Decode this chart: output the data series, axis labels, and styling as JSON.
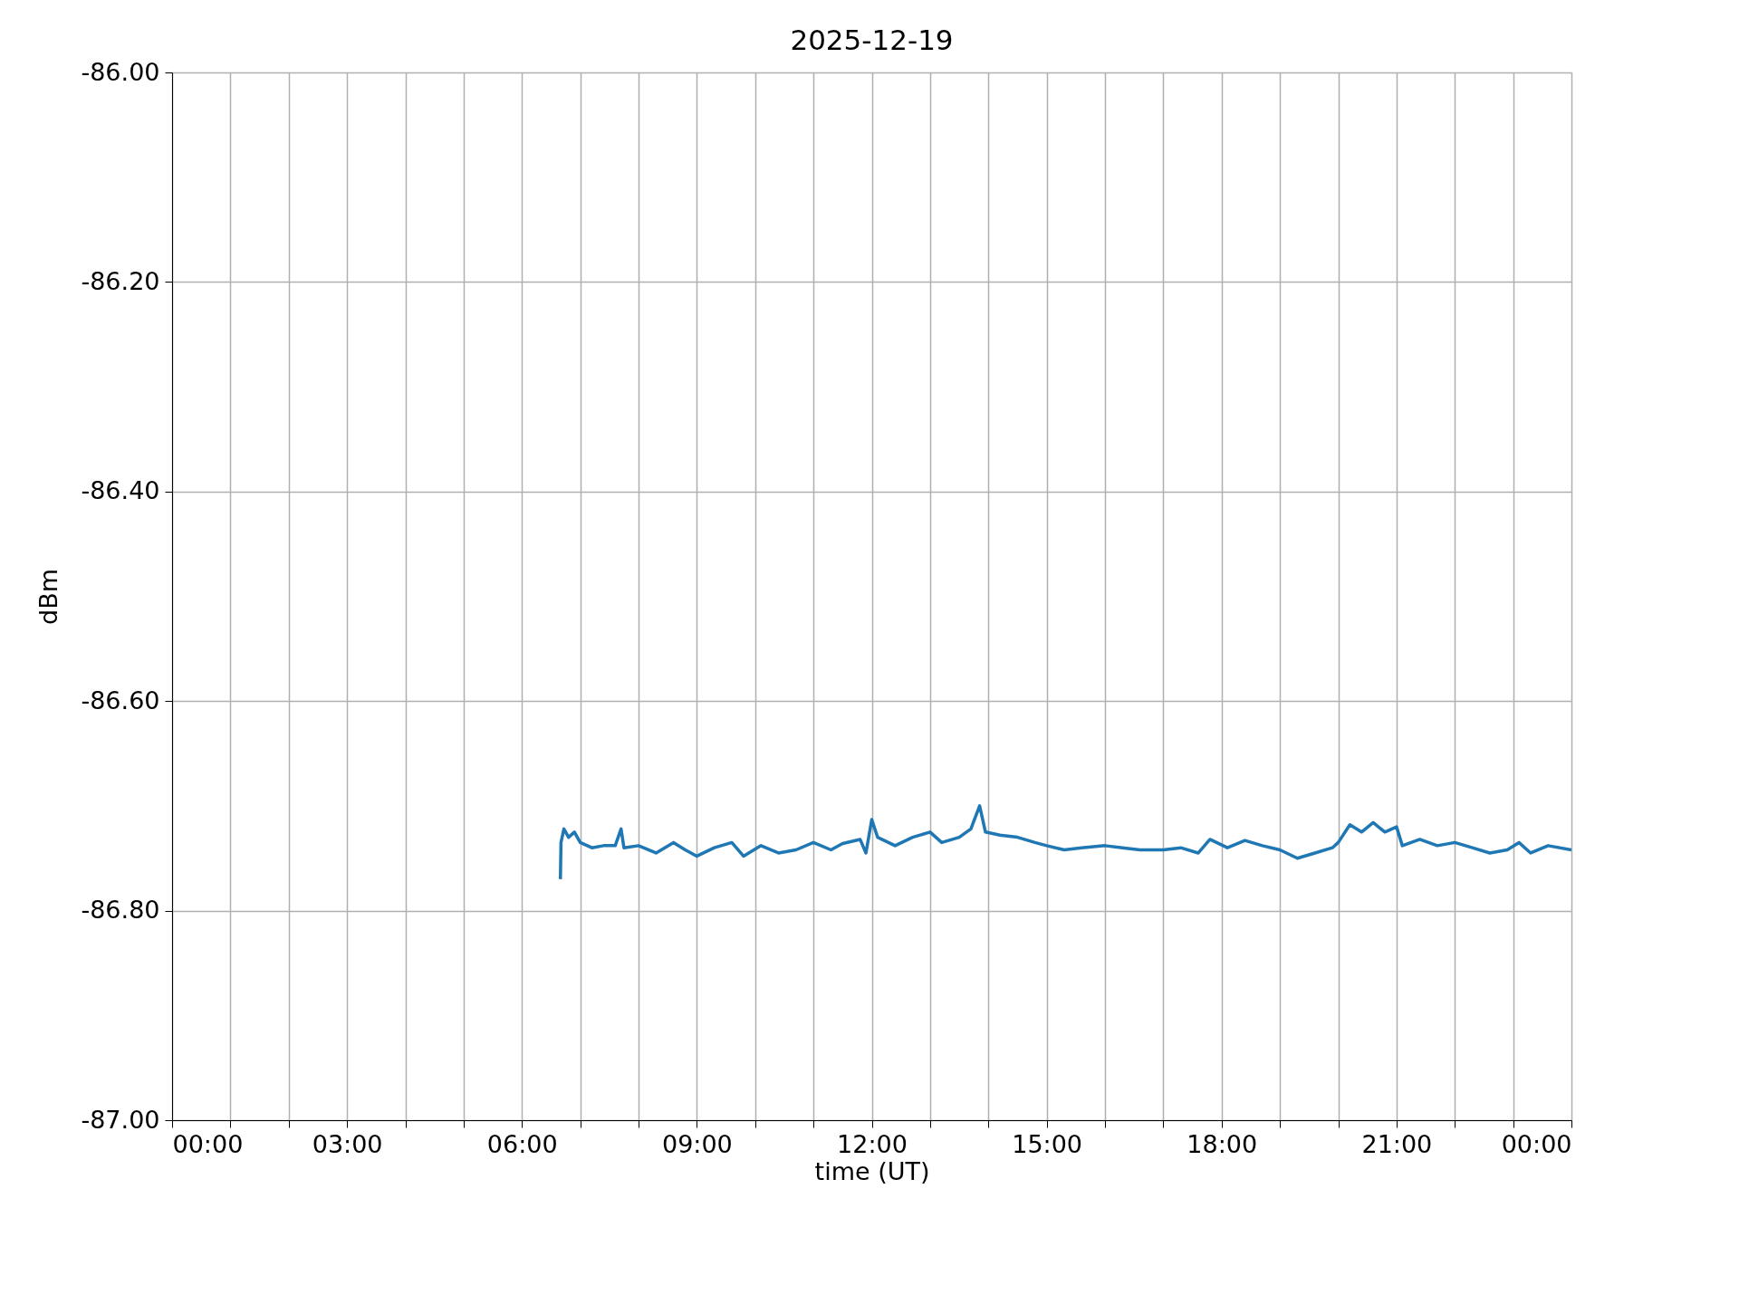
{
  "chart_data": {
    "type": "line",
    "title": "2025-12-19",
    "xlabel": "time (UT)",
    "ylabel": "dBm",
    "xlim": [
      0,
      24
    ],
    "xticks": [
      {
        "value": 0,
        "label": "00:00"
      },
      {
        "value": 1,
        "label": null
      },
      {
        "value": 2,
        "label": null
      },
      {
        "value": 3,
        "label": "03:00"
      },
      {
        "value": 4,
        "label": null
      },
      {
        "value": 5,
        "label": null
      },
      {
        "value": 6,
        "label": "06:00"
      },
      {
        "value": 7,
        "label": null
      },
      {
        "value": 8,
        "label": null
      },
      {
        "value": 9,
        "label": "09:00"
      },
      {
        "value": 10,
        "label": null
      },
      {
        "value": 11,
        "label": null
      },
      {
        "value": 12,
        "label": "12:00"
      },
      {
        "value": 13,
        "label": null
      },
      {
        "value": 14,
        "label": null
      },
      {
        "value": 15,
        "label": "15:00"
      },
      {
        "value": 16,
        "label": null
      },
      {
        "value": 17,
        "label": null
      },
      {
        "value": 18,
        "label": "18:00"
      },
      {
        "value": 19,
        "label": null
      },
      {
        "value": 20,
        "label": null
      },
      {
        "value": 21,
        "label": "21:00"
      },
      {
        "value": 22,
        "label": null
      },
      {
        "value": 23,
        "label": null
      },
      {
        "value": 24,
        "label": "00:00"
      }
    ],
    "ylim": [
      -87,
      -86
    ],
    "yticks": [
      {
        "value": -87,
        "label": "-87.00"
      },
      {
        "value": -86.8,
        "label": "-86.80"
      },
      {
        "value": -86.6,
        "label": "-86.60"
      },
      {
        "value": -86.4,
        "label": "-86.40"
      },
      {
        "value": -86.2,
        "label": "-86.20"
      },
      {
        "value": -86,
        "label": "-86.00"
      }
    ],
    "grid": true,
    "line_style": "solid",
    "x": [
      6.66,
      6.67,
      6.72,
      6.8,
      6.9,
      7.0,
      7.2,
      7.4,
      7.6,
      7.7,
      7.75,
      8.0,
      8.3,
      8.6,
      8.8,
      9.0,
      9.3,
      9.6,
      9.8,
      10.1,
      10.4,
      10.7,
      11.0,
      11.3,
      11.5,
      11.8,
      11.9,
      12.0,
      12.1,
      12.4,
      12.7,
      13.0,
      13.2,
      13.5,
      13.7,
      13.85,
      13.95,
      14.2,
      14.5,
      14.8,
      15.0,
      15.3,
      15.6,
      16.0,
      16.3,
      16.6,
      17.0,
      17.3,
      17.6,
      17.8,
      18.1,
      18.4,
      18.7,
      19.0,
      19.3,
      19.6,
      19.9,
      20.0,
      20.2,
      20.4,
      20.6,
      20.8,
      21.0,
      21.1,
      21.4,
      21.7,
      22.0,
      22.3,
      22.6,
      22.9,
      23.1,
      23.3,
      23.6,
      24.0
    ],
    "series": [
      {
        "color": "#1f77b4",
        "values": [
          -86.77,
          -86.735,
          -86.722,
          -86.73,
          -86.725,
          -86.735,
          -86.74,
          -86.738,
          -86.738,
          -86.722,
          -86.74,
          -86.738,
          -86.745,
          -86.735,
          -86.742,
          -86.748,
          -86.74,
          -86.735,
          -86.748,
          -86.738,
          -86.745,
          -86.742,
          -86.735,
          -86.742,
          -86.736,
          -86.732,
          -86.745,
          -86.713,
          -86.73,
          -86.738,
          -86.73,
          -86.725,
          -86.735,
          -86.73,
          -86.722,
          -86.7,
          -86.725,
          -86.728,
          -86.73,
          -86.735,
          -86.738,
          -86.742,
          -86.74,
          -86.738,
          -86.74,
          -86.742,
          -86.742,
          -86.74,
          -86.745,
          -86.732,
          -86.74,
          -86.733,
          -86.738,
          -86.742,
          -86.75,
          -86.745,
          -86.74,
          -86.735,
          -86.718,
          -86.725,
          -86.716,
          -86.725,
          -86.72,
          -86.738,
          -86.732,
          -86.738,
          -86.735,
          -86.74,
          -86.745,
          -86.742,
          -86.735,
          -86.745,
          -86.738,
          -86.742
        ]
      }
    ]
  }
}
